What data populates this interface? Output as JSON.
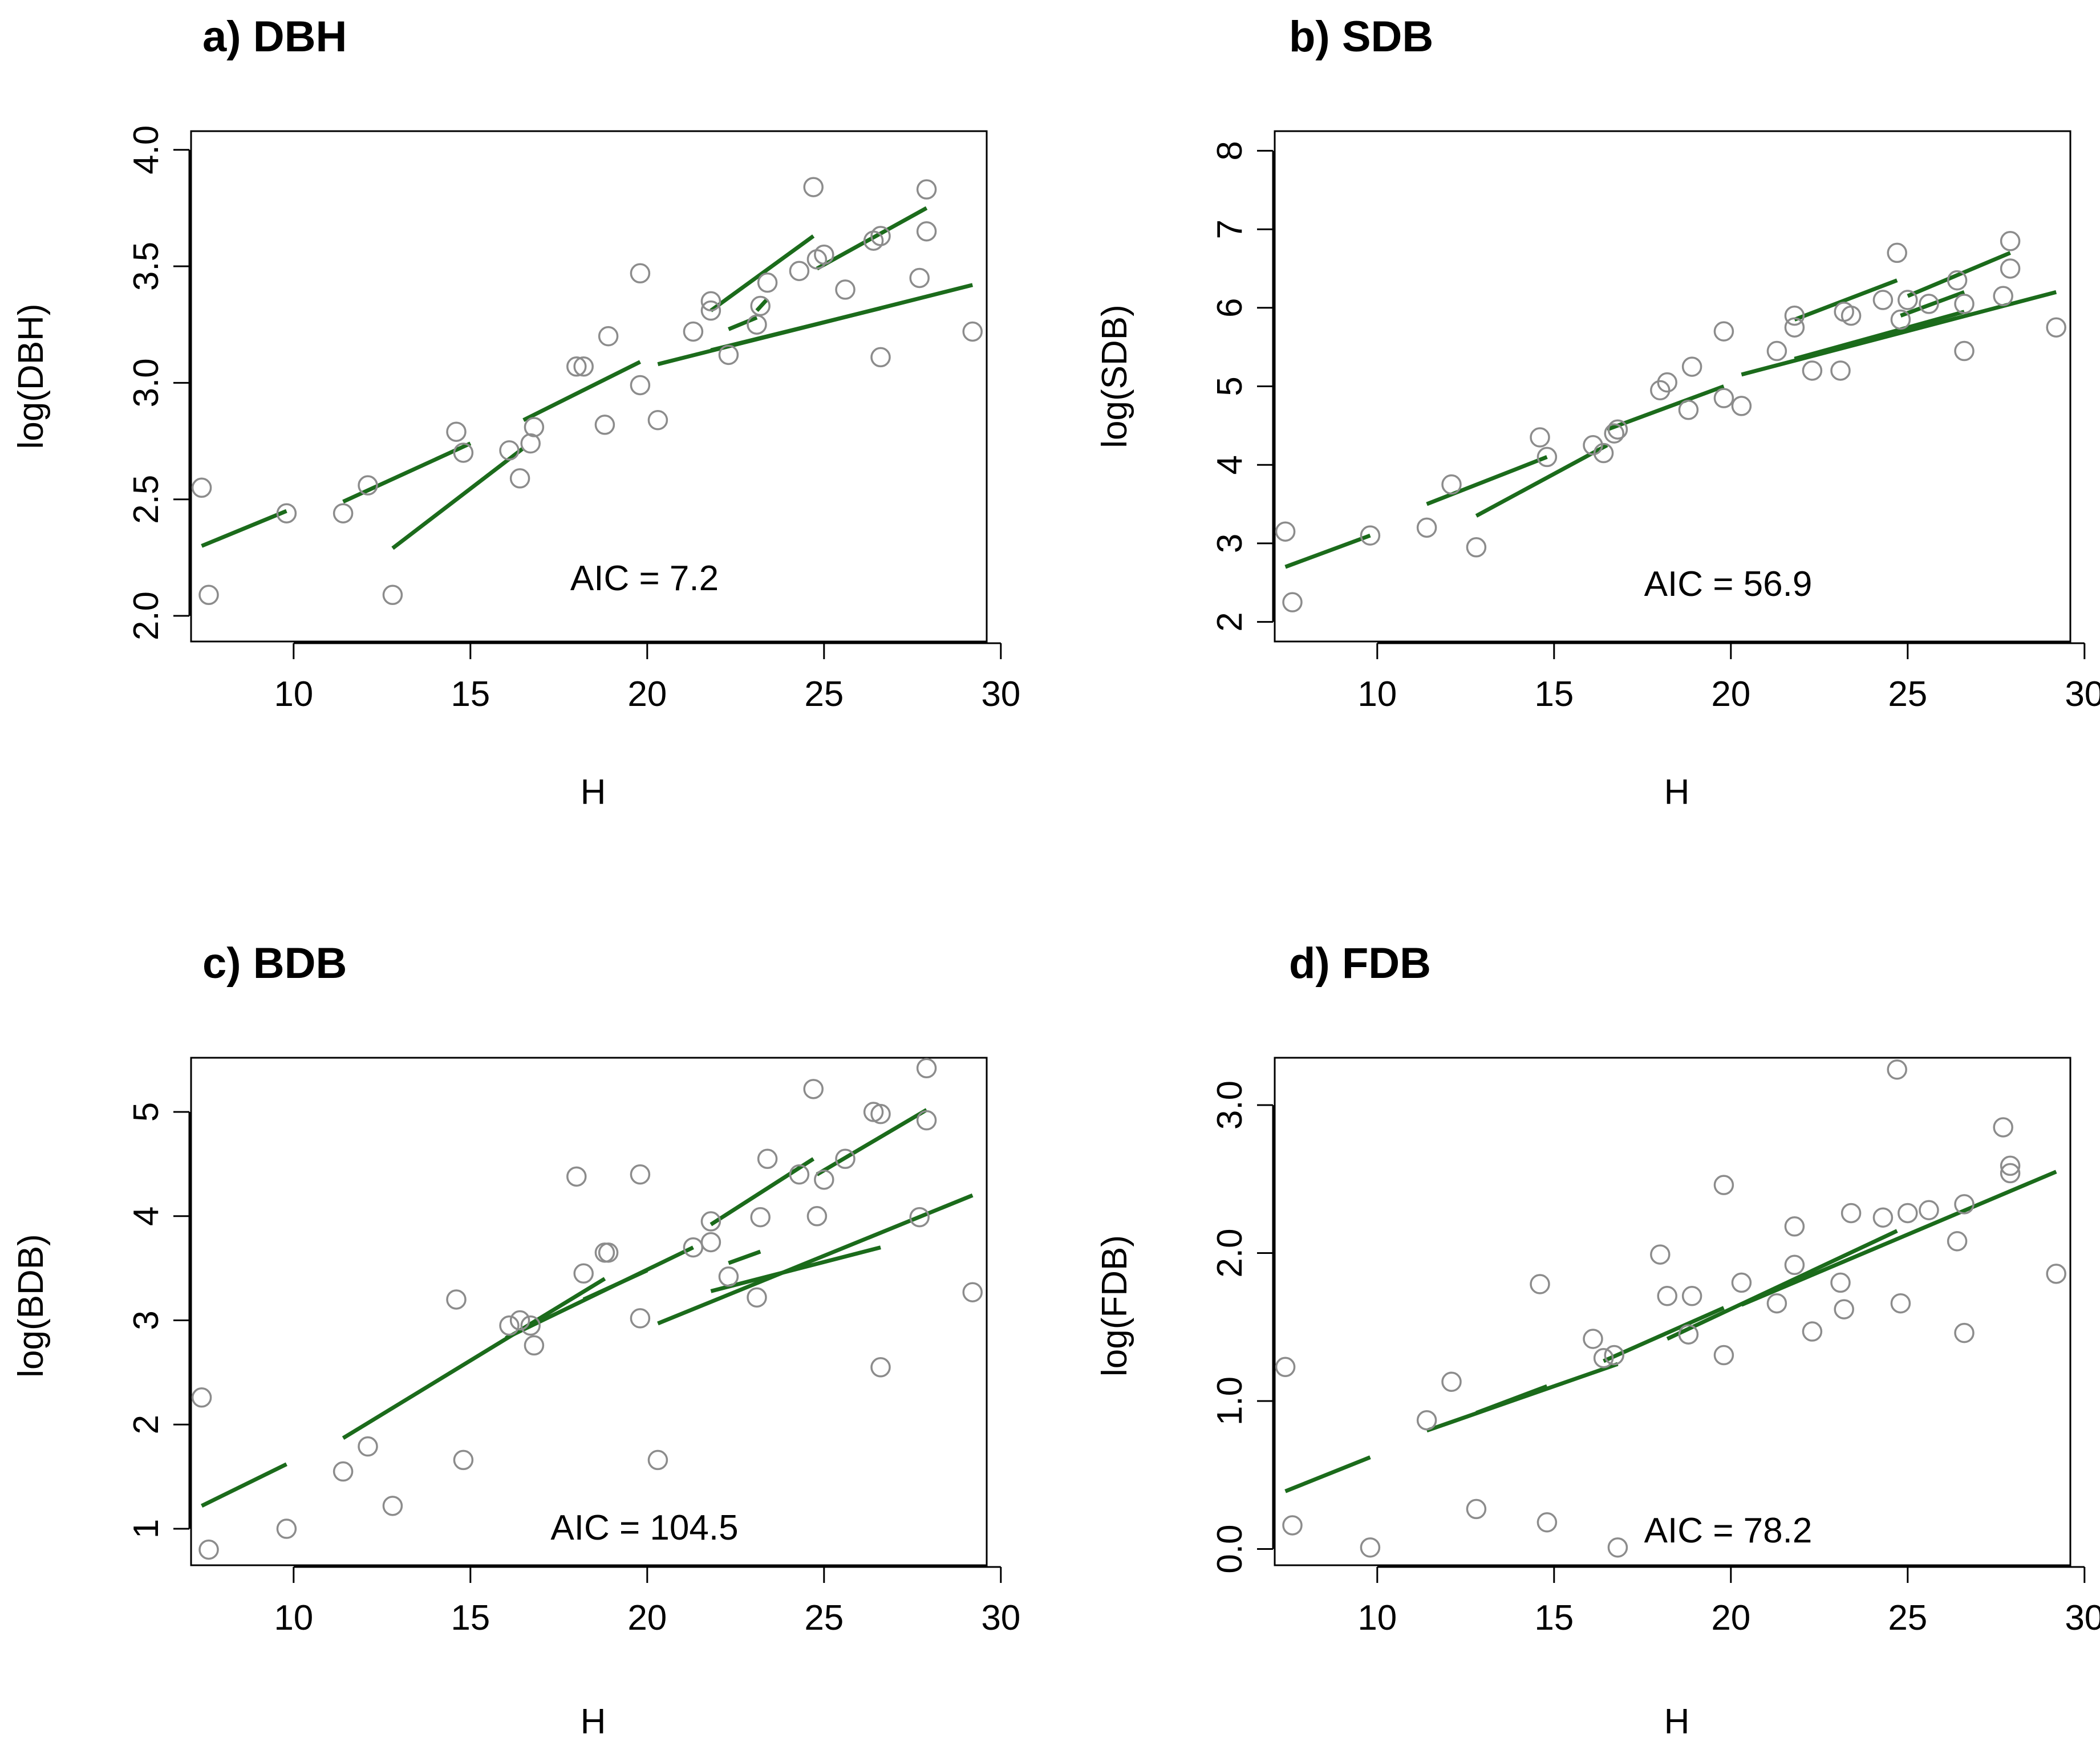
{
  "colors": {
    "line": "#1b6b1b",
    "point": "#8c8c8c",
    "axis": "#000000"
  },
  "chart_data": [
    {
      "type": "scatter",
      "title": "a) DBH",
      "xlabel": "H",
      "ylabel": "log(DBH)",
      "xlim": [
        7,
        30
      ],
      "ylim": [
        2.0,
        4.0
      ],
      "xticks": [
        "10",
        "15",
        "20",
        "25",
        "30"
      ],
      "yticks": [
        "2.0",
        "2.5",
        "3.0",
        "3.5",
        "4.0"
      ],
      "annotation": "AIC = 7.2",
      "points": [
        [
          7.4,
          2.55
        ],
        [
          7.6,
          2.09
        ],
        [
          9.8,
          2.44
        ],
        [
          11.4,
          2.44
        ],
        [
          12.1,
          2.56
        ],
        [
          12.8,
          2.09
        ],
        [
          14.6,
          2.79
        ],
        [
          14.8,
          2.7
        ],
        [
          16.1,
          2.71
        ],
        [
          16.4,
          2.59
        ],
        [
          16.7,
          2.74
        ],
        [
          16.8,
          2.81
        ],
        [
          18.0,
          3.07
        ],
        [
          18.2,
          3.07
        ],
        [
          18.8,
          2.82
        ],
        [
          18.9,
          3.2
        ],
        [
          19.8,
          2.99
        ],
        [
          19.8,
          3.47
        ],
        [
          20.3,
          2.84
        ],
        [
          21.3,
          3.22
        ],
        [
          21.8,
          3.35
        ],
        [
          21.8,
          3.31
        ],
        [
          22.3,
          3.12
        ],
        [
          23.1,
          3.25
        ],
        [
          23.2,
          3.33
        ],
        [
          23.4,
          3.43
        ],
        [
          24.3,
          3.48
        ],
        [
          24.7,
          3.84
        ],
        [
          24.8,
          3.53
        ],
        [
          25.0,
          3.55
        ],
        [
          25.6,
          3.4
        ],
        [
          26.4,
          3.61
        ],
        [
          26.6,
          3.63
        ],
        [
          26.6,
          3.11
        ],
        [
          27.7,
          3.45
        ],
        [
          27.9,
          3.83
        ],
        [
          27.9,
          3.65
        ],
        [
          29.2,
          3.22
        ]
      ],
      "fitted_lines": [
        [
          [
            7.4,
            2.3
          ],
          [
            9.8,
            2.45
          ]
        ],
        [
          [
            11.4,
            2.49
          ],
          [
            15.0,
            2.74
          ]
        ],
        [
          [
            12.8,
            2.29
          ],
          [
            16.5,
            2.72
          ]
        ],
        [
          [
            16.5,
            2.84
          ],
          [
            19.8,
            3.09
          ]
        ],
        [
          [
            20.3,
            3.08
          ],
          [
            29.2,
            3.42
          ]
        ],
        [
          [
            21.8,
            3.14
          ],
          [
            26.6,
            3.32
          ]
        ],
        [
          [
            21.8,
            3.31
          ],
          [
            24.7,
            3.63
          ]
        ],
        [
          [
            22.3,
            3.23
          ],
          [
            23.1,
            3.28
          ]
        ],
        [
          [
            23.1,
            3.31
          ],
          [
            23.4,
            3.36
          ]
        ],
        [
          [
            24.8,
            3.49
          ],
          [
            27.9,
            3.75
          ]
        ]
      ]
    },
    {
      "type": "scatter",
      "title": "b) SDB",
      "xlabel": "H",
      "ylabel": "log(SDB)",
      "xlim": [
        7,
        30
      ],
      "ylim": [
        2,
        8
      ],
      "xticks": [
        "10",
        "15",
        "20",
        "25",
        "30"
      ],
      "yticks": [
        "2",
        "3",
        "4",
        "5",
        "6",
        "7",
        "8"
      ],
      "annotation": "AIC = 56.9",
      "points": [
        [
          7.4,
          3.15
        ],
        [
          7.6,
          2.25
        ],
        [
          9.8,
          3.1
        ],
        [
          11.4,
          3.2
        ],
        [
          12.1,
          3.75
        ],
        [
          12.8,
          2.95
        ],
        [
          14.6,
          4.35
        ],
        [
          14.8,
          4.1
        ],
        [
          16.1,
          4.25
        ],
        [
          16.4,
          4.15
        ],
        [
          16.7,
          4.4
        ],
        [
          16.8,
          4.45
        ],
        [
          18.0,
          4.95
        ],
        [
          18.2,
          5.05
        ],
        [
          18.8,
          4.7
        ],
        [
          18.9,
          5.25
        ],
        [
          19.8,
          4.85
        ],
        [
          19.8,
          5.7
        ],
        [
          20.3,
          4.75
        ],
        [
          21.3,
          5.45
        ],
        [
          21.8,
          5.9
        ],
        [
          21.8,
          5.75
        ],
        [
          22.3,
          5.2
        ],
        [
          23.1,
          5.2
        ],
        [
          23.2,
          5.95
        ],
        [
          23.4,
          5.9
        ],
        [
          24.3,
          6.1
        ],
        [
          24.7,
          6.7
        ],
        [
          24.8,
          5.85
        ],
        [
          25.0,
          6.1
        ],
        [
          25.6,
          6.05
        ],
        [
          26.4,
          6.35
        ],
        [
          26.6,
          6.05
        ],
        [
          26.6,
          5.45
        ],
        [
          27.7,
          6.15
        ],
        [
          27.9,
          6.85
        ],
        [
          27.9,
          6.5
        ],
        [
          29.2,
          5.75
        ]
      ],
      "fitted_lines": [
        [
          [
            7.4,
            2.7
          ],
          [
            9.8,
            3.1
          ]
        ],
        [
          [
            11.4,
            3.5
          ],
          [
            14.8,
            4.1
          ]
        ],
        [
          [
            12.8,
            3.35
          ],
          [
            16.5,
            4.25
          ]
        ],
        [
          [
            16.5,
            4.45
          ],
          [
            19.8,
            5.0
          ]
        ],
        [
          [
            20.3,
            5.15
          ],
          [
            29.2,
            6.2
          ]
        ],
        [
          [
            21.8,
            5.35
          ],
          [
            26.6,
            5.95
          ]
        ],
        [
          [
            21.8,
            5.85
          ],
          [
            24.7,
            6.35
          ]
        ],
        [
          [
            24.8,
            5.9
          ],
          [
            26.6,
            6.2
          ]
        ],
        [
          [
            25.0,
            6.15
          ],
          [
            27.9,
            6.7
          ]
        ]
      ]
    },
    {
      "type": "scatter",
      "title": "c) BDB",
      "xlabel": "H",
      "ylabel": "log(BDB)",
      "xlim": [
        7,
        30
      ],
      "ylim": [
        1,
        5
      ],
      "xticks": [
        "10",
        "15",
        "20",
        "25",
        "30"
      ],
      "yticks": [
        "1",
        "2",
        "3",
        "4",
        "5"
      ],
      "annotation": "AIC = 104.5",
      "points": [
        [
          7.4,
          2.26
        ],
        [
          7.6,
          0.8
        ],
        [
          9.8,
          1.0
        ],
        [
          11.4,
          1.55
        ],
        [
          12.1,
          1.79
        ],
        [
          12.8,
          1.22
        ],
        [
          14.6,
          3.2
        ],
        [
          14.8,
          1.66
        ],
        [
          16.1,
          2.95
        ],
        [
          16.4,
          3.0
        ],
        [
          16.7,
          2.95
        ],
        [
          16.8,
          2.76
        ],
        [
          18.0,
          4.38
        ],
        [
          18.2,
          3.45
        ],
        [
          18.8,
          3.65
        ],
        [
          18.9,
          3.65
        ],
        [
          19.8,
          3.02
        ],
        [
          19.8,
          4.4
        ],
        [
          20.3,
          1.66
        ],
        [
          21.3,
          3.7
        ],
        [
          21.8,
          3.95
        ],
        [
          21.8,
          3.75
        ],
        [
          22.3,
          3.42
        ],
        [
          23.1,
          3.22
        ],
        [
          23.2,
          3.99
        ],
        [
          23.4,
          4.55
        ],
        [
          24.3,
          4.4
        ],
        [
          24.7,
          5.22
        ],
        [
          24.8,
          4.0
        ],
        [
          25.0,
          4.35
        ],
        [
          25.6,
          4.55
        ],
        [
          26.4,
          5.0
        ],
        [
          26.6,
          4.98
        ],
        [
          26.6,
          2.55
        ],
        [
          27.7,
          3.99
        ],
        [
          27.9,
          5.42
        ],
        [
          27.9,
          4.92
        ],
        [
          29.2,
          3.27
        ]
      ],
      "fitted_lines": [
        [
          [
            7.4,
            1.22
          ],
          [
            9.8,
            1.62
          ]
        ],
        [
          [
            11.4,
            1.87
          ],
          [
            18.8,
            3.4
          ]
        ],
        [
          [
            18.2,
            3.2
          ],
          [
            20.0,
            3.48
          ]
        ],
        [
          [
            16.0,
            2.83
          ],
          [
            21.3,
            3.7
          ]
        ],
        [
          [
            20.3,
            2.97
          ],
          [
            29.2,
            4.2
          ]
        ],
        [
          [
            21.8,
            3.28
          ],
          [
            26.6,
            3.7
          ]
        ],
        [
          [
            21.8,
            3.92
          ],
          [
            24.7,
            4.55
          ]
        ],
        [
          [
            22.3,
            3.55
          ],
          [
            23.2,
            3.66
          ]
        ],
        [
          [
            24.8,
            4.4
          ],
          [
            27.9,
            5.02
          ]
        ]
      ]
    },
    {
      "type": "scatter",
      "title": "d) FDB",
      "xlabel": "H",
      "ylabel": "log(FDB)",
      "xlim": [
        7,
        30
      ],
      "ylim": [
        0.0,
        3.0
      ],
      "xticks": [
        "10",
        "15",
        "20",
        "25",
        "30"
      ],
      "yticks": [
        "0.0",
        "1.0",
        "2.0",
        "3.0"
      ],
      "annotation": "AIC = 78.2",
      "points": [
        [
          7.4,
          1.23
        ],
        [
          7.6,
          0.16
        ],
        [
          9.8,
          0.01
        ],
        [
          11.4,
          0.87
        ],
        [
          12.1,
          1.13
        ],
        [
          12.8,
          0.27
        ],
        [
          14.6,
          1.79
        ],
        [
          14.8,
          0.18
        ],
        [
          16.1,
          1.42
        ],
        [
          16.4,
          1.29
        ],
        [
          16.7,
          1.31
        ],
        [
          16.8,
          0.01
        ],
        [
          18.0,
          1.99
        ],
        [
          18.2,
          1.71
        ],
        [
          18.8,
          1.45
        ],
        [
          18.9,
          1.71
        ],
        [
          19.8,
          1.31
        ],
        [
          19.8,
          2.46
        ],
        [
          20.3,
          1.8
        ],
        [
          21.3,
          1.66
        ],
        [
          21.8,
          2.18
        ],
        [
          21.8,
          1.92
        ],
        [
          22.3,
          1.47
        ],
        [
          23.1,
          1.8
        ],
        [
          23.2,
          1.62
        ],
        [
          23.4,
          2.27
        ],
        [
          24.3,
          2.24
        ],
        [
          24.7,
          3.24
        ],
        [
          24.8,
          1.66
        ],
        [
          25.0,
          2.27
        ],
        [
          25.6,
          2.29
        ],
        [
          26.4,
          2.08
        ],
        [
          26.6,
          2.33
        ],
        [
          26.6,
          1.46
        ],
        [
          27.7,
          2.85
        ],
        [
          27.9,
          2.59
        ],
        [
          27.9,
          2.54
        ],
        [
          29.2,
          1.86
        ]
      ],
      "fitted_lines": [
        [
          [
            7.4,
            0.39
          ],
          [
            9.8,
            0.62
          ]
        ],
        [
          [
            11.4,
            0.8
          ],
          [
            16.8,
            1.25
          ]
        ],
        [
          [
            12.8,
            0.92
          ],
          [
            14.8,
            1.1
          ]
        ],
        [
          [
            16.4,
            1.27
          ],
          [
            19.8,
            1.63
          ]
        ],
        [
          [
            18.2,
            1.42
          ],
          [
            24.7,
            2.15
          ]
        ],
        [
          [
            20.3,
            1.65
          ],
          [
            29.2,
            2.55
          ]
        ]
      ]
    }
  ]
}
